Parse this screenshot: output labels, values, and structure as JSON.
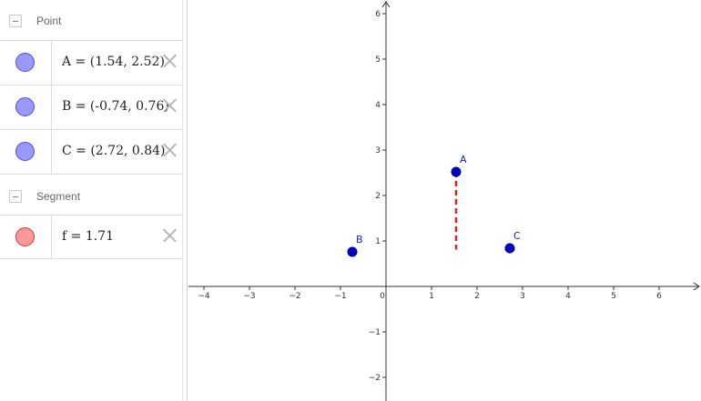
{
  "algebra": {
    "groups": [
      {
        "label": "Point",
        "items": [
          {
            "text": "A = (1.54, 2.52)",
            "kind": "point"
          },
          {
            "text": "B = (-0.74, 0.76)",
            "kind": "point"
          },
          {
            "text": "C = (2.72, 0.84)",
            "kind": "point"
          }
        ]
      },
      {
        "label": "Segment",
        "items": [
          {
            "text": "f = 1.71",
            "kind": "segment"
          }
        ]
      }
    ]
  },
  "graphics": {
    "x_ticks": [
      "−4",
      "−3",
      "−2",
      "−1",
      "0",
      "1",
      "2",
      "3",
      "4",
      "5",
      "6"
    ],
    "y_ticks": [
      "6",
      "5",
      "4",
      "3",
      "2",
      "1",
      "−1",
      "−2"
    ],
    "x_range": [
      -4.3,
      6.9
    ],
    "y_range": [
      -2.45,
      6.25
    ],
    "points": [
      {
        "name": "A",
        "x": 1.54,
        "y": 2.52
      },
      {
        "name": "B",
        "x": -0.74,
        "y": 0.76
      },
      {
        "name": "C",
        "x": 2.72,
        "y": 0.84
      }
    ],
    "segment": {
      "name": "f",
      "x1": 1.54,
      "y1": 2.52,
      "x2": 1.54,
      "y2": 0.81,
      "length": 1.71
    },
    "colors": {
      "point_fill": "#0000cc",
      "point_label": "#1a1acc",
      "segment": "#dd2222",
      "axis": "#333333"
    }
  }
}
